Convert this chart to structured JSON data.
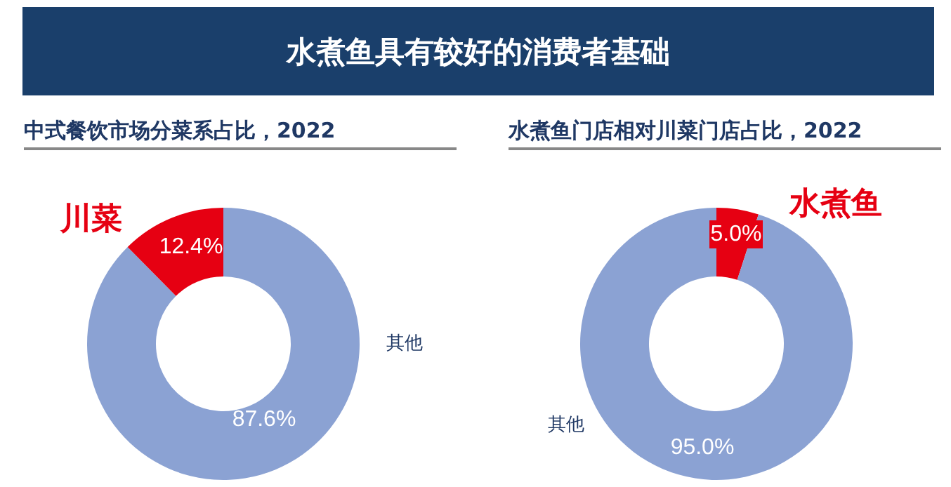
{
  "chart_data": [
    {
      "type": "donut",
      "title": "水煮鱼具有较好的消费者基础",
      "subtitle": "中式餐饮市场分菜系占比，2022",
      "categories": [
        "其他",
        "川菜"
      ],
      "values": [
        87.6,
        12.4
      ],
      "colors": [
        "#8ba2d3",
        "#e60012"
      ],
      "value_labels": [
        "87.6%",
        "12.4%"
      ]
    },
    {
      "type": "donut",
      "title": "水煮鱼门店相对川菜门店占比，2022",
      "categories": [
        "水煮鱼",
        "其他"
      ],
      "values": [
        5.0,
        95.0
      ],
      "colors": [
        "#e60012",
        "#8ba2d3"
      ],
      "value_labels": [
        "5.0%",
        "95.0%"
      ]
    }
  ]
}
